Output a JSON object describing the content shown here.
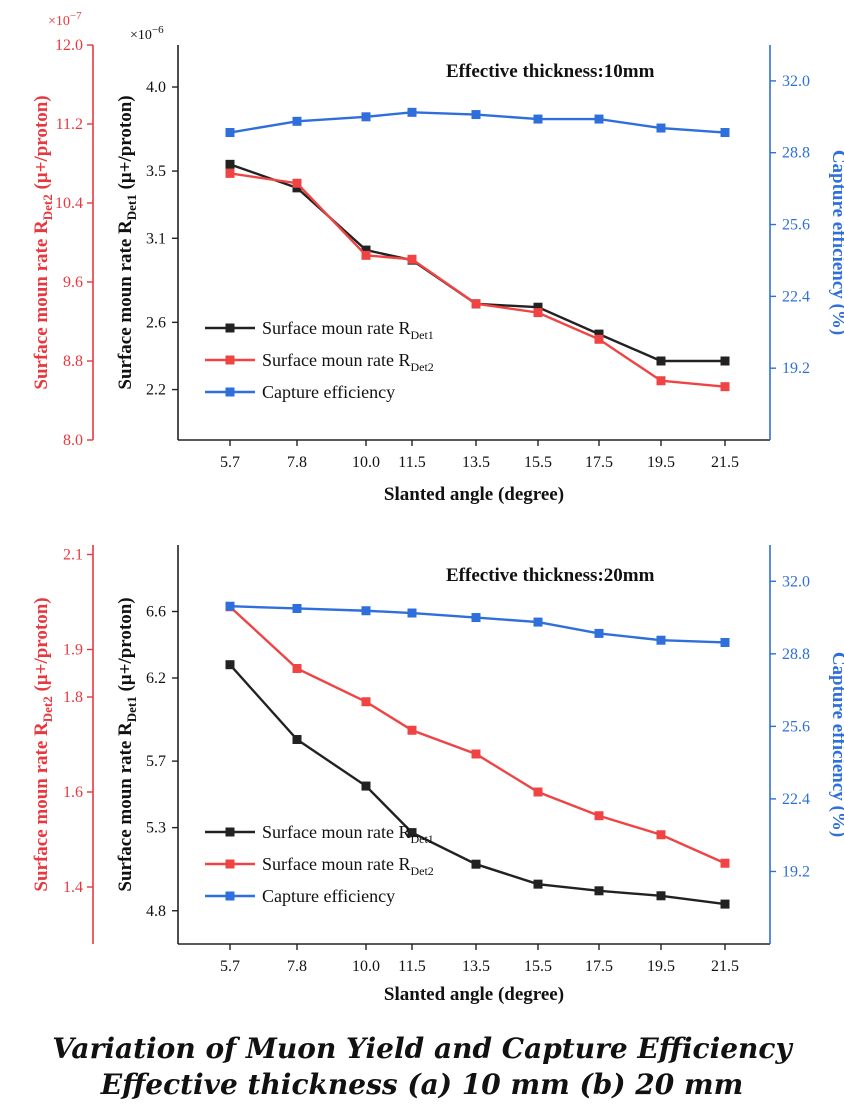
{
  "caption": {
    "line1": "Variation of Muon Yield and Capture Efficiency",
    "line2": "Effective thickness (a) 10 mm   (b) 20 mm"
  },
  "colors": {
    "det1": "#222222",
    "det2": "#f04444",
    "capture": "#2e6fdc",
    "axis_red": "#e8383f",
    "axis_blue": "#2e6fdc"
  },
  "chart_data": [
    {
      "type": "line",
      "annotation": "Effective thickness:10mm",
      "xlabel": "Slanted angle (degree)",
      "x": [
        5.7,
        7.8,
        10.0,
        11.5,
        13.5,
        15.5,
        17.5,
        19.5,
        21.5
      ],
      "x_tick_labels": [
        "5.7",
        "7.8",
        "10.0",
        "11.5",
        "13.5",
        "15.5",
        "17.5",
        "19.5",
        "21.5"
      ],
      "y_left_inner": {
        "label": "Surface moun rate R",
        "label_sub": "Det1",
        "label_tail": " (μ+/proton)",
        "multiplier": "×10",
        "multiplier_exp": "−6",
        "range": [
          1.9,
          4.25
        ],
        "ticks": [
          "2.2",
          "2.6",
          "3.1",
          "3.5",
          "4.0"
        ]
      },
      "y_left_outer": {
        "label": "Surface moun rate R",
        "label_sub": "Det2",
        "label_tail": " (μ+/proton)",
        "multiplier": "×10",
        "multiplier_exp": "−7",
        "range": [
          8.0,
          12.0
        ],
        "ticks": [
          "8.0",
          "8.8",
          "9.6",
          "10.4",
          "11.2",
          "12.0"
        ]
      },
      "y_right": {
        "label": "Capture efficiency (%)",
        "range": [
          16.0,
          33.6
        ],
        "ticks": [
          "19.2",
          "22.4",
          "25.6",
          "28.8",
          "32.0"
        ]
      },
      "series": [
        {
          "name": "Surface moun rate R",
          "name_sub": "Det1",
          "axis": "left_inner",
          "values": [
            3.54,
            3.4,
            3.03,
            2.97,
            2.71,
            2.69,
            2.53,
            2.37,
            2.37
          ]
        },
        {
          "name": "Surface moun rate R",
          "name_sub": "Det2",
          "axis": "left_outer",
          "values": [
            10.7,
            10.6,
            9.87,
            9.83,
            9.38,
            9.29,
            9.02,
            8.6,
            8.54
          ]
        },
        {
          "name": "Capture efficiency",
          "name_sub": "",
          "axis": "right",
          "values": [
            29.7,
            30.2,
            30.4,
            30.6,
            30.5,
            30.3,
            30.3,
            29.9,
            29.7
          ]
        }
      ],
      "legend": "bottom-left"
    },
    {
      "type": "line",
      "annotation": "Effective thickness:20mm",
      "xlabel": "Slanted angle (degree)",
      "x": [
        5.7,
        7.8,
        10.0,
        11.5,
        13.5,
        15.5,
        17.5,
        19.5,
        21.5
      ],
      "x_tick_labels": [
        "5.7",
        "7.8",
        "10.0",
        "11.5",
        "13.5",
        "15.5",
        "17.5",
        "19.5",
        "21.5"
      ],
      "y_left_inner": {
        "label": "Surface moun rate R",
        "label_sub": "Det1",
        "label_tail": " (μ+/proton)",
        "multiplier": "",
        "multiplier_exp": "",
        "range": [
          4.6,
          7.0
        ],
        "ticks": [
          "4.8",
          "5.3",
          "5.7",
          "6.2",
          "6.6"
        ]
      },
      "y_left_outer": {
        "label": "Surface moun rate R",
        "label_sub": "Det2",
        "label_tail": " (μ+/proton)",
        "multiplier": "",
        "multiplier_exp": "",
        "range": [
          1.28,
          2.12
        ],
        "ticks": [
          "1.4",
          "1.6",
          "1.8",
          "1.9",
          "2.1"
        ]
      },
      "y_right": {
        "label": "Capture efficiency (%)",
        "range": [
          16.0,
          33.6
        ],
        "ticks": [
          "19.2",
          "22.4",
          "25.6",
          "28.8",
          "32.0"
        ]
      },
      "series": [
        {
          "name": "Surface moun rate R",
          "name_sub": "Det1",
          "axis": "left_inner",
          "values": [
            6.28,
            5.83,
            5.55,
            5.27,
            5.08,
            4.96,
            4.92,
            4.89,
            4.84
          ]
        },
        {
          "name": "Surface moun rate R",
          "name_sub": "Det2",
          "axis": "left_outer",
          "values": [
            1.99,
            1.86,
            1.79,
            1.73,
            1.68,
            1.6,
            1.55,
            1.51,
            1.45
          ]
        },
        {
          "name": "Capture efficiency",
          "name_sub": "",
          "axis": "right",
          "values": [
            30.9,
            30.8,
            30.7,
            30.6,
            30.4,
            30.2,
            29.7,
            29.4,
            29.3
          ]
        }
      ],
      "legend": "bottom-left"
    }
  ]
}
